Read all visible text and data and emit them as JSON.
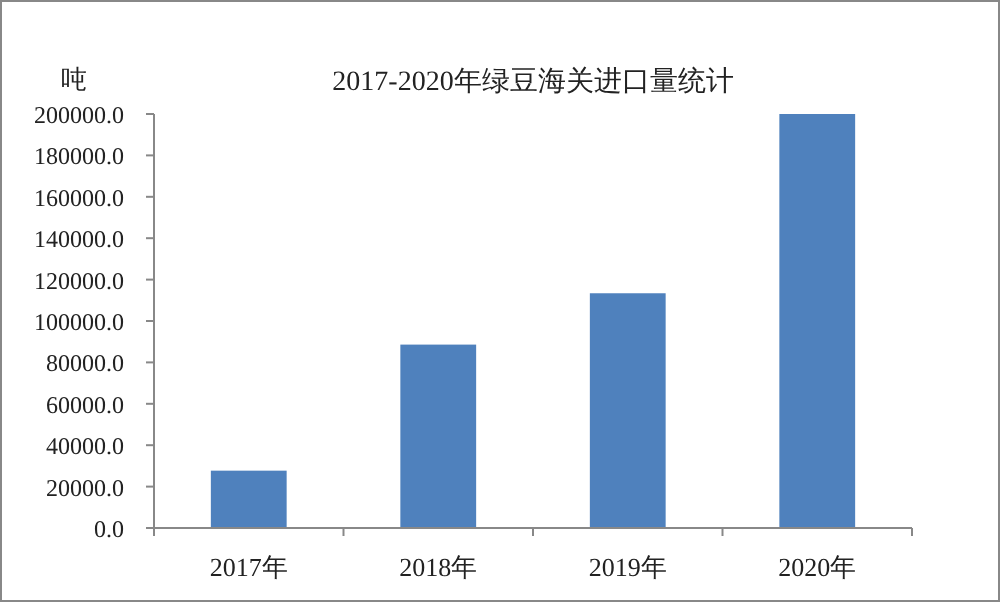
{
  "chart_data": {
    "type": "bar",
    "title": "2017-2020年绿豆海关进口量统计",
    "ylabel": "吨",
    "categories": [
      "2017年",
      "2018年",
      "2019年",
      "2020年"
    ],
    "values": [
      27700,
      88600,
      113400,
      200000
    ],
    "color": "#4f81bd",
    "ylim": [
      0,
      200000
    ],
    "yticks": [
      {
        "value": 0,
        "label": "0.0"
      },
      {
        "value": 20000,
        "label": "20000.0"
      },
      {
        "value": 40000,
        "label": "40000.0"
      },
      {
        "value": 60000,
        "label": "60000.0"
      },
      {
        "value": 80000,
        "label": "80000.0"
      },
      {
        "value": 100000,
        "label": "100000.0"
      },
      {
        "value": 120000,
        "label": "120000.0"
      },
      {
        "value": 140000,
        "label": "140000.0"
      },
      {
        "value": 160000,
        "label": "160000.0"
      },
      {
        "value": 180000,
        "label": "180000.0"
      },
      {
        "value": 200000,
        "label": "200000.0"
      }
    ],
    "grid": false
  }
}
